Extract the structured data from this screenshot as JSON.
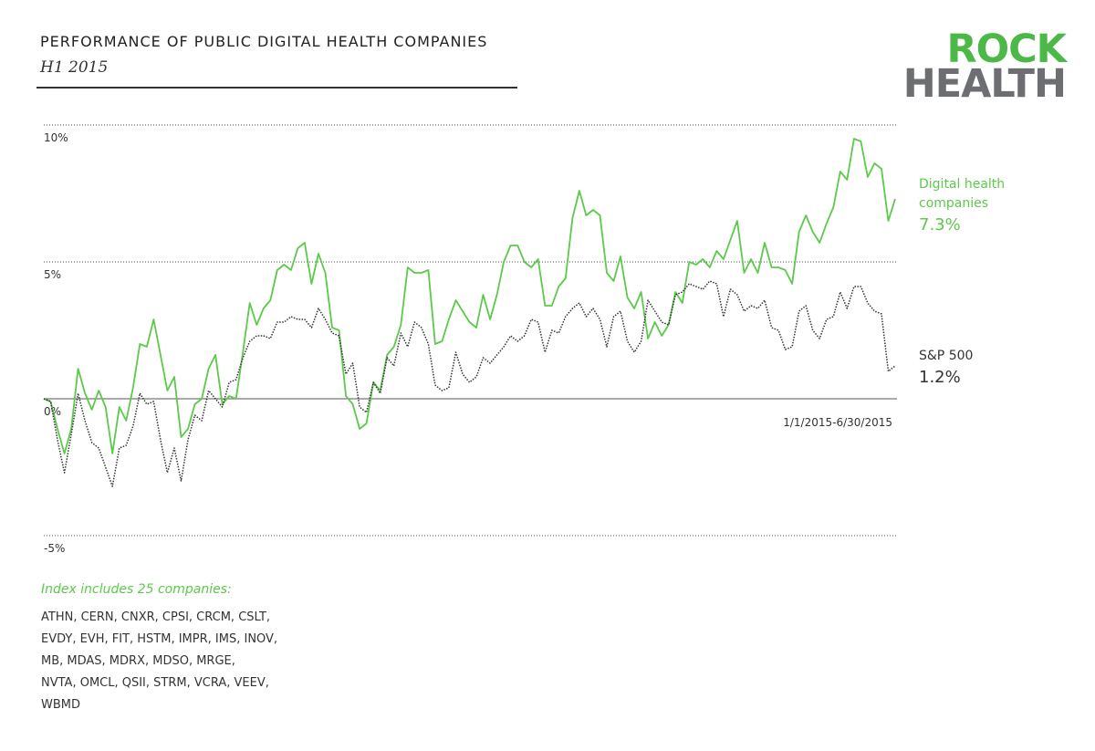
{
  "chart_data": {
    "type": "line",
    "title": "PERFORMANCE OF PUBLIC DIGITAL HEALTH COMPANIES",
    "subtitle": "H1 2015",
    "logo": [
      "ROCK",
      "HEALTH"
    ],
    "date_range": "1/1/2015-6/30/2015",
    "ylim": [
      -5,
      10
    ],
    "yticks": [
      {
        "value": -5,
        "label": "-5%"
      },
      {
        "value": 0,
        "label": "0%"
      },
      {
        "value": 5,
        "label": "5%"
      },
      {
        "value": 10,
        "label": "10%"
      }
    ],
    "grid": true,
    "series": [
      {
        "name": "Digital health companies",
        "color": "#5cc94b",
        "style": "solid",
        "end_label": "7.3%",
        "values": [
          0,
          -0.1,
          -1.1,
          -2.0,
          -1.1,
          1.1,
          0.2,
          -0.4,
          0.3,
          -0.3,
          -2.0,
          -0.3,
          -0.8,
          0.4,
          2.0,
          1.9,
          2.9,
          1.6,
          0.3,
          0.8,
          -1.4,
          -1.1,
          -0.2,
          0,
          1.1,
          1.6,
          -0.2,
          0.1,
          0,
          1.7,
          3.5,
          2.7,
          3.3,
          3.6,
          4.7,
          4.9,
          4.7,
          5.5,
          5.7,
          4.2,
          5.3,
          4.6,
          2.6,
          2.5,
          0.1,
          -0.2,
          -1.1,
          -0.9,
          0.6,
          0.3,
          1.6,
          1.9,
          2.7,
          4.8,
          4.6,
          4.6,
          4.7,
          2.0,
          2.1,
          2.9,
          3.6,
          3.2,
          2.8,
          2.6,
          3.8,
          2.9,
          3.8,
          5.0,
          5.6,
          5.6,
          5.0,
          4.8,
          5.1,
          3.4,
          3.4,
          4.1,
          4.4,
          6.6,
          7.6,
          6.7,
          6.9,
          6.7,
          4.6,
          4.3,
          5.2,
          3.7,
          3.3,
          3.9,
          2.2,
          2.8,
          2.3,
          2.7,
          3.9,
          3.5,
          5.0,
          4.9,
          5.1,
          4.8,
          5.4,
          5.1,
          5.8,
          6.5,
          4.6,
          5.1,
          4.6,
          5.7,
          4.8,
          4.8,
          4.7,
          4.2,
          6.1,
          6.7,
          6.1,
          5.7,
          6.4,
          7.0,
          8.3,
          8.0,
          9.5,
          9.4,
          8.1,
          8.6,
          8.4,
          6.5,
          7.3
        ]
      },
      {
        "name": "S&P 500",
        "color": "#333333",
        "style": "dotted",
        "end_label": "1.2%",
        "values": [
          0,
          -0.1,
          -1.5,
          -2.7,
          -1.3,
          0.2,
          -0.8,
          -1.6,
          -1.8,
          -2.5,
          -3.2,
          -1.8,
          -1.7,
          -1.0,
          0.2,
          -0.2,
          -0.1,
          -1.5,
          -2.7,
          -1.8,
          -3.0,
          -1.5,
          -0.6,
          -0.8,
          0.3,
          0,
          -0.3,
          0.6,
          0.7,
          1.5,
          2.1,
          2.3,
          2.3,
          2.2,
          2.8,
          2.8,
          3.0,
          2.9,
          2.9,
          2.6,
          3.3,
          2.9,
          2.4,
          2.3,
          0.9,
          1.3,
          -0.3,
          -0.5,
          0.6,
          0.2,
          1.5,
          1.2,
          2.4,
          1.9,
          2.8,
          2.6,
          2.0,
          0.5,
          0.3,
          0.4,
          1.7,
          0.9,
          0.6,
          0.8,
          1.5,
          1.3,
          1.6,
          1.9,
          2.3,
          2.1,
          2.3,
          2.9,
          2.8,
          1.7,
          2.5,
          2.4,
          3.0,
          3.3,
          3.5,
          3.0,
          3.3,
          2.9,
          1.9,
          3.0,
          3.2,
          2.1,
          1.7,
          2.1,
          3.6,
          3.2,
          2.8,
          2.7,
          3.8,
          3.9,
          4.2,
          4.1,
          4.0,
          4.3,
          4.2,
          3.0,
          4.0,
          3.8,
          3.2,
          3.4,
          3.3,
          3.6,
          2.6,
          2.5,
          1.8,
          1.9,
          3.2,
          3.4,
          2.5,
          2.2,
          2.9,
          3.0,
          3.9,
          3.3,
          4.1,
          4.1,
          3.5,
          3.2,
          3.1,
          1.0,
          1.2
        ]
      }
    ],
    "footnote": "Index includes 25 companies:",
    "companies": [
      "ATHN, CERN, CNXR, CPSI, CRCM, CSLT,",
      "EVDY, EVH, FIT, HSTM, IMPR, IMS, INOV,",
      "MB, MDAS, MDRX, MDSO, MRGE,",
      "NVTA, OMCL, QSII, STRM, VCRA, VEEV,",
      "WBMD"
    ]
  }
}
